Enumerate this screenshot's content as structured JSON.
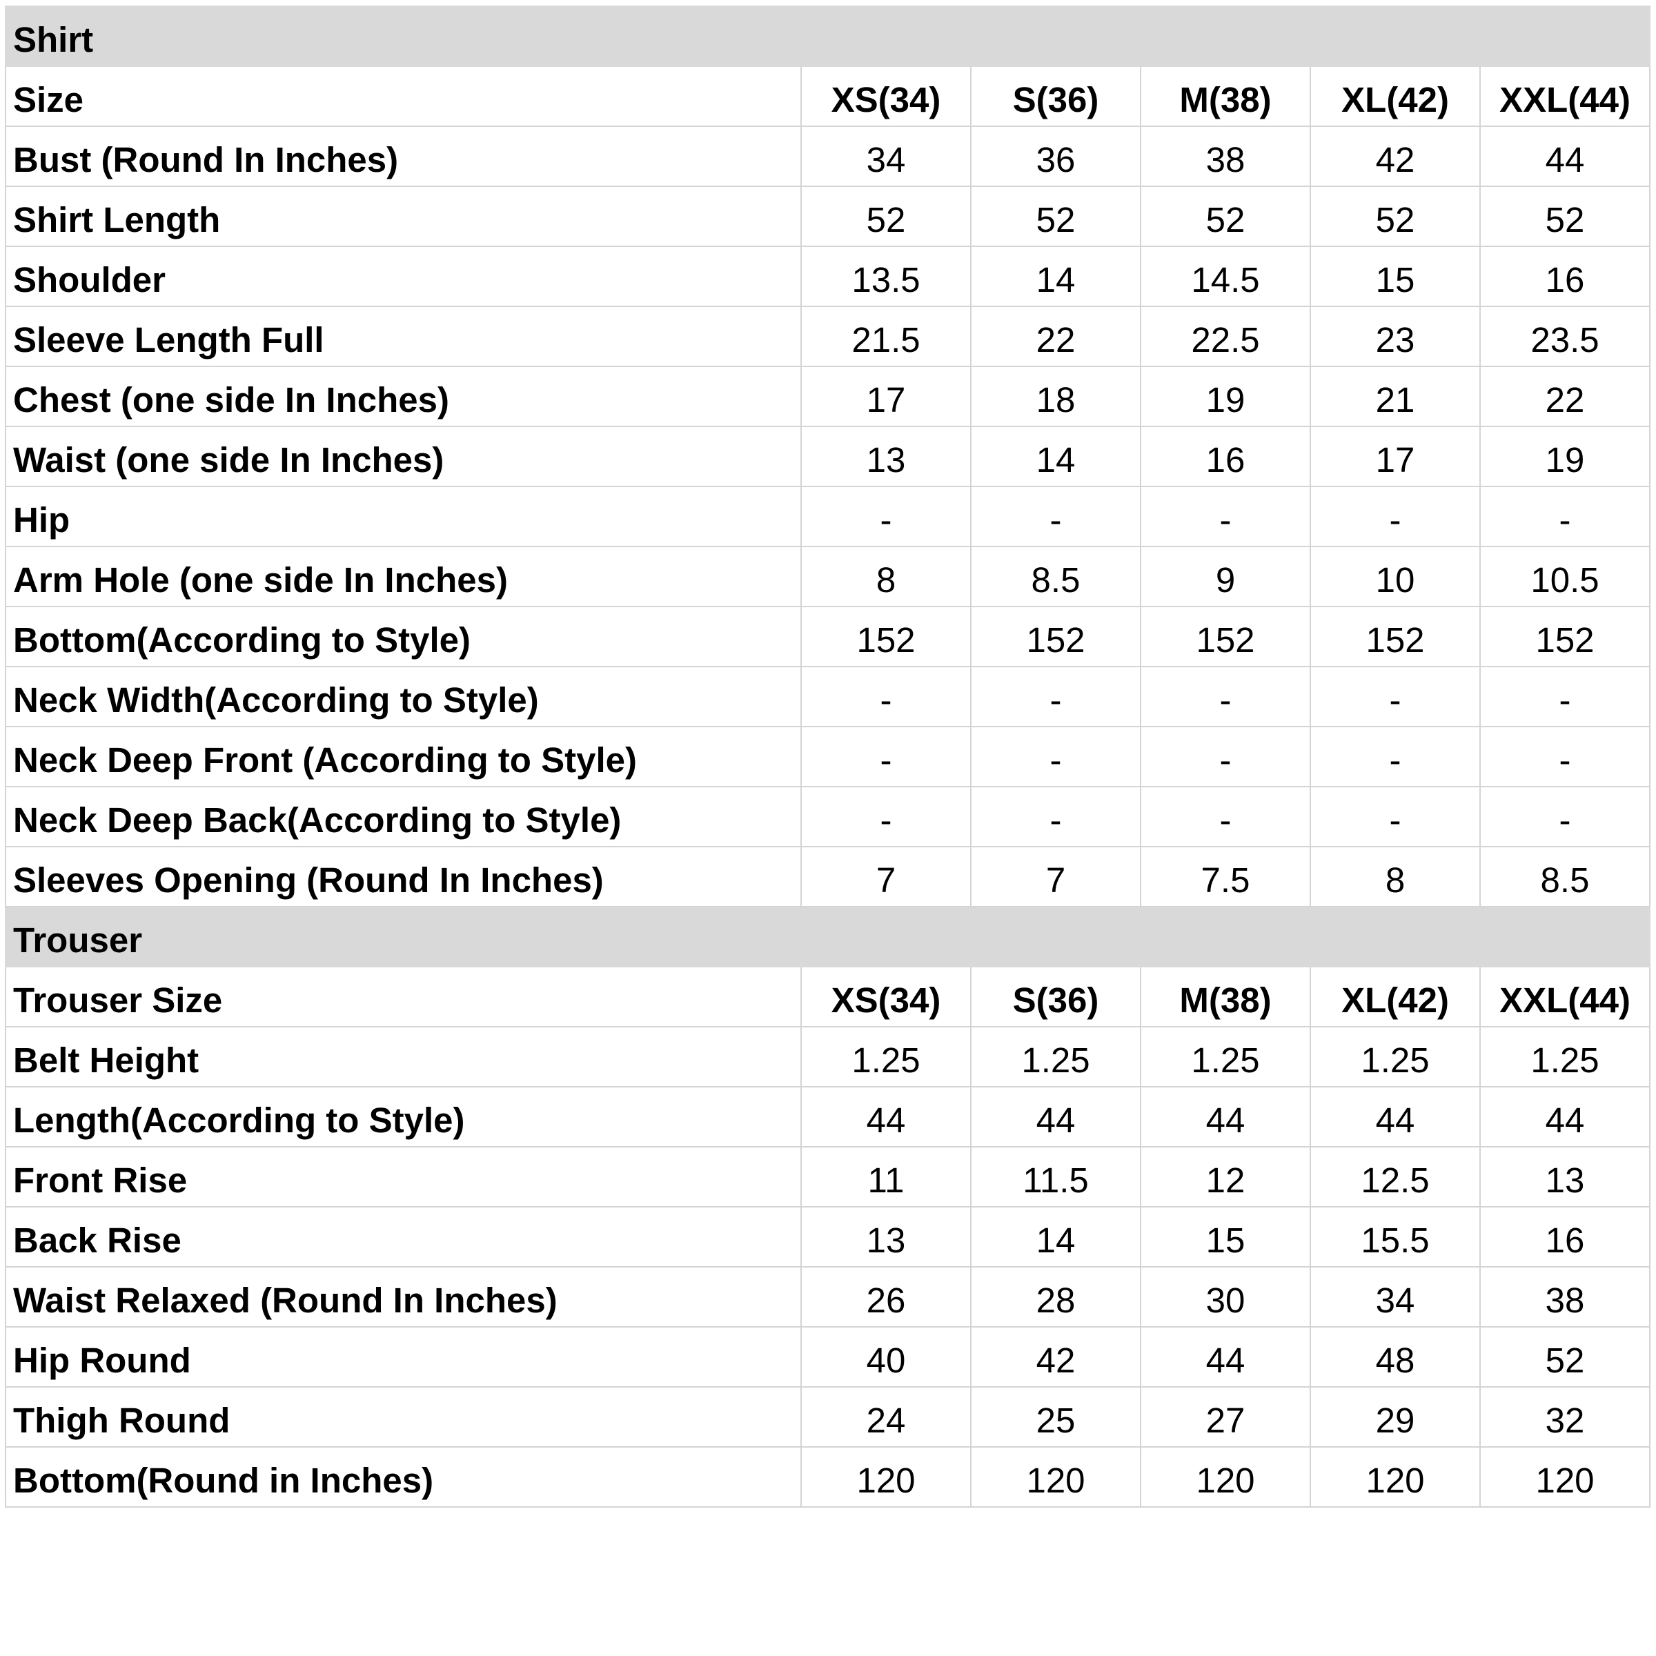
{
  "colors": {
    "section_header_bg": "#d9d9d9",
    "grid": "#d4d4d4"
  },
  "shirt": {
    "title": "Shirt",
    "size_label": "Size",
    "sizes": [
      "XS(34)",
      "S(36)",
      "M(38)",
      "XL(42)",
      "XXL(44)"
    ],
    "rows": [
      {
        "label": "Bust (Round In Inches)",
        "values": [
          "34",
          "36",
          "38",
          "42",
          "44"
        ]
      },
      {
        "label": "Shirt Length",
        "values": [
          "52",
          "52",
          "52",
          "52",
          "52"
        ]
      },
      {
        "label": "Shoulder",
        "values": [
          "13.5",
          "14",
          "14.5",
          "15",
          "16"
        ]
      },
      {
        "label": "Sleeve Length Full",
        "values": [
          "21.5",
          "22",
          "22.5",
          "23",
          "23.5"
        ]
      },
      {
        "label": "Chest (one side In Inches)",
        "values": [
          "17",
          "18",
          "19",
          "21",
          "22"
        ]
      },
      {
        "label": "Waist (one side In Inches)",
        "values": [
          "13",
          "14",
          "16",
          "17",
          "19"
        ]
      },
      {
        "label": "Hip",
        "values": [
          "-",
          "-",
          "-",
          "-",
          "-"
        ]
      },
      {
        "label": "Arm Hole (one side In Inches)",
        "values": [
          "8",
          "8.5",
          "9",
          "10",
          "10.5"
        ]
      },
      {
        "label": "Bottom(According to Style)",
        "values": [
          "152",
          "152",
          "152",
          "152",
          "152"
        ]
      },
      {
        "label": "Neck Width(According to Style)",
        "values": [
          "-",
          "-",
          "-",
          "-",
          "-"
        ]
      },
      {
        "label": "Neck Deep Front (According to Style)",
        "values": [
          "-",
          "-",
          "-",
          "-",
          "-"
        ]
      },
      {
        "label": "Neck Deep Back(According to Style)",
        "values": [
          "-",
          "-",
          "-",
          "-",
          "-"
        ]
      },
      {
        "label": "Sleeves Opening (Round In Inches)",
        "values": [
          "7",
          "7",
          "7.5",
          "8",
          "8.5"
        ]
      }
    ]
  },
  "trouser": {
    "title": "Trouser",
    "size_label": "Trouser Size",
    "sizes": [
      "XS(34)",
      "S(36)",
      "M(38)",
      "XL(42)",
      "XXL(44)"
    ],
    "rows": [
      {
        "label": "Belt Height",
        "values": [
          "1.25",
          "1.25",
          "1.25",
          "1.25",
          "1.25"
        ]
      },
      {
        "label": "Length(According to Style)",
        "values": [
          "44",
          "44",
          "44",
          "44",
          "44"
        ]
      },
      {
        "label": "Front Rise",
        "values": [
          "11",
          "11.5",
          "12",
          "12.5",
          "13"
        ]
      },
      {
        "label": "Back Rise",
        "values": [
          "13",
          "14",
          "15",
          "15.5",
          "16"
        ]
      },
      {
        "label": "Waist Relaxed (Round In Inches)",
        "values": [
          "26",
          "28",
          "30",
          "34",
          "38"
        ]
      },
      {
        "label": "Hip Round",
        "values": [
          "40",
          "42",
          "44",
          "48",
          "52"
        ]
      },
      {
        "label": "Thigh Round",
        "values": [
          "24",
          "25",
          "27",
          "29",
          "32"
        ]
      },
      {
        "label": "Bottom(Round in Inches)",
        "values": [
          "120",
          "120",
          "120",
          "120",
          "120"
        ]
      }
    ]
  }
}
